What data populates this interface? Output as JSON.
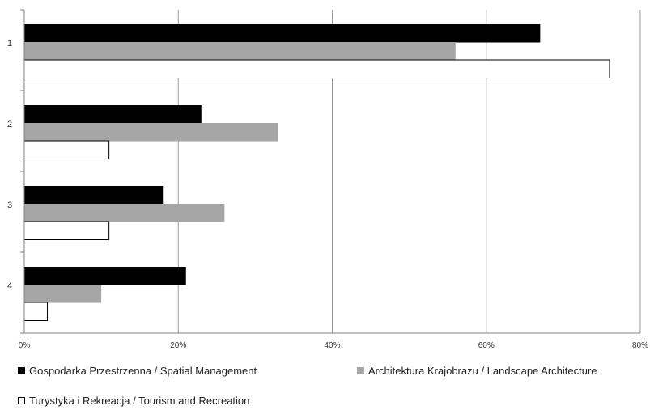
{
  "chart_data": {
    "type": "bar",
    "orientation": "horizontal",
    "categories": [
      "1",
      "2",
      "3",
      "4"
    ],
    "series": [
      {
        "name": "Gospodarka Przestrzenna / Spatial Management",
        "values": [
          67,
          23,
          18,
          21
        ],
        "color": "#000000"
      },
      {
        "name": "Architektura Krajobrazu / Landscape Architecture",
        "values": [
          56,
          33,
          26,
          10
        ],
        "color": "#a6a6a6"
      },
      {
        "name": "Turystyka i Rekreacja / Tourism and Recreation",
        "values": [
          76,
          11,
          11,
          3
        ],
        "color": "#ffffff"
      }
    ],
    "x_ticks": [
      "0%",
      "20%",
      "40%",
      "60%",
      "80%"
    ],
    "xlim": [
      0,
      80
    ],
    "grid": true,
    "legend_position": "bottom"
  }
}
